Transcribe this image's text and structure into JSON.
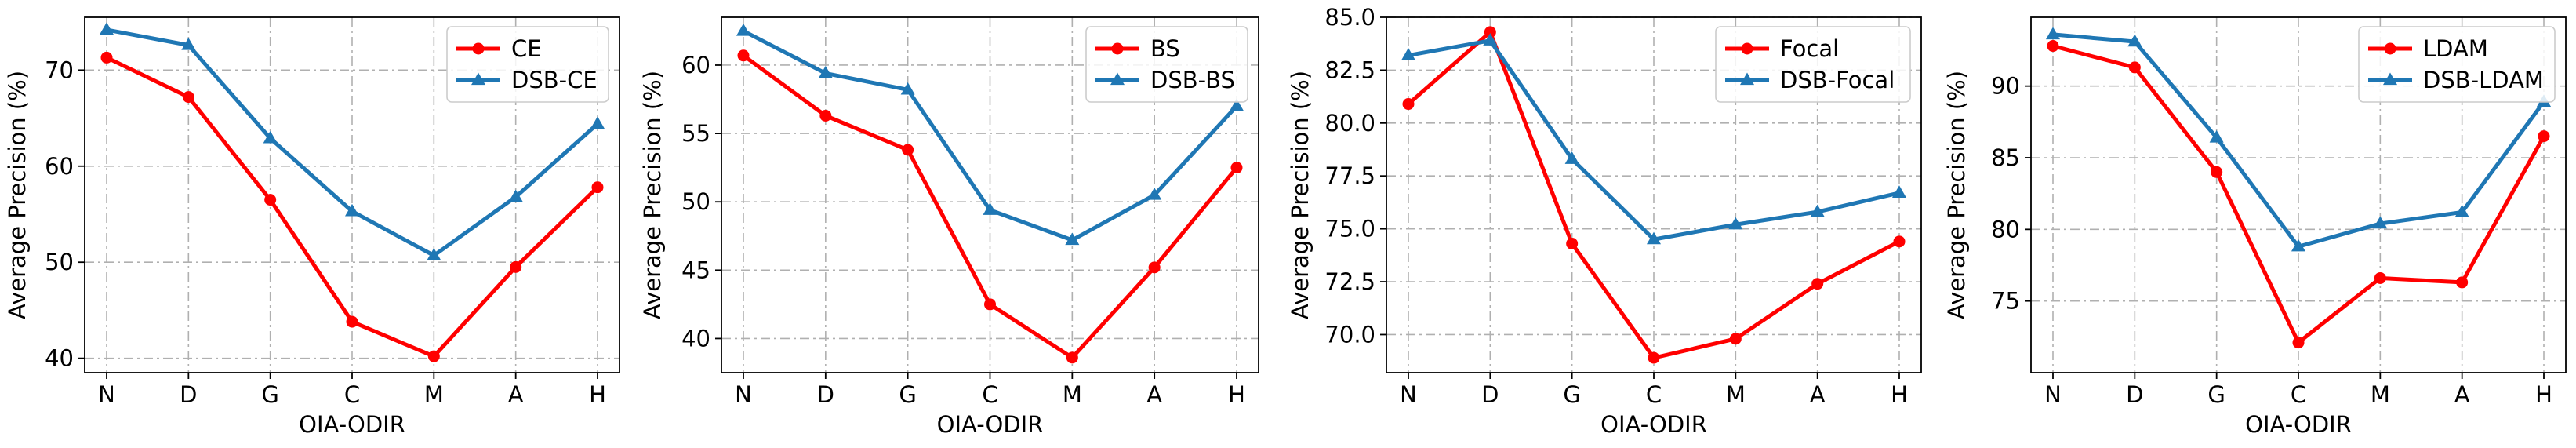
{
  "chart_data": [
    {
      "type": "line",
      "xlabel": "OIA-ODIR",
      "ylabel": "Average Precision (%)",
      "categories": [
        "N",
        "D",
        "G",
        "C",
        "M",
        "A",
        "H"
      ],
      "ylim": [
        38.5,
        75.5
      ],
      "yticks": [
        40,
        50,
        60,
        70
      ],
      "ytick_labels": [
        "40",
        "50",
        "60",
        "70"
      ],
      "grid": true,
      "legend_position": "top-right",
      "series": [
        {
          "name": "CE",
          "color": "#ff0000",
          "marker": "circle",
          "values": [
            71.3,
            67.2,
            56.5,
            43.8,
            40.2,
            49.5,
            57.8
          ]
        },
        {
          "name": "DSB-CE",
          "color": "#1f77b4",
          "marker": "triangle",
          "values": [
            74.2,
            72.6,
            62.9,
            55.3,
            50.7,
            56.8,
            64.4
          ]
        }
      ]
    },
    {
      "type": "line",
      "xlabel": "OIA-ODIR",
      "ylabel": "Average Precision (%)",
      "categories": [
        "N",
        "D",
        "G",
        "C",
        "M",
        "A",
        "H"
      ],
      "ylim": [
        37.5,
        63.5
      ],
      "yticks": [
        40,
        45,
        50,
        55,
        60
      ],
      "ytick_labels": [
        "40",
        "45",
        "50",
        "55",
        "60"
      ],
      "grid": true,
      "legend_position": "top-right",
      "series": [
        {
          "name": "BS",
          "color": "#ff0000",
          "marker": "circle",
          "values": [
            60.7,
            56.3,
            53.8,
            42.5,
            38.6,
            45.2,
            52.5
          ]
        },
        {
          "name": "DSB-BS",
          "color": "#1f77b4",
          "marker": "triangle",
          "values": [
            62.5,
            59.4,
            58.2,
            49.4,
            47.2,
            50.5,
            57.0
          ]
        }
      ]
    },
    {
      "type": "line",
      "xlabel": "OIA-ODIR",
      "ylabel": "Average Precision (%)",
      "categories": [
        "N",
        "D",
        "G",
        "C",
        "M",
        "A",
        "H"
      ],
      "ylim": [
        68.2,
        85.0
      ],
      "yticks": [
        70.0,
        72.5,
        75.0,
        77.5,
        80.0,
        82.5,
        85.0
      ],
      "ytick_labels": [
        "70.0",
        "72.5",
        "75.0",
        "77.5",
        "80.0",
        "82.5",
        "85.0"
      ],
      "grid": true,
      "legend_position": "top-right",
      "series": [
        {
          "name": "Focal",
          "color": "#ff0000",
          "marker": "circle",
          "values": [
            80.9,
            84.3,
            74.3,
            68.9,
            69.8,
            72.4,
            74.4
          ]
        },
        {
          "name": "DSB-Focal",
          "color": "#1f77b4",
          "marker": "triangle",
          "values": [
            83.2,
            83.9,
            78.3,
            74.5,
            75.2,
            75.8,
            76.7
          ]
        }
      ]
    },
    {
      "type": "line",
      "xlabel": "OIA-ODIR",
      "ylabel": "Average Precision (%)",
      "categories": [
        "N",
        "D",
        "G",
        "C",
        "M",
        "A",
        "H"
      ],
      "ylim": [
        70.0,
        94.8
      ],
      "yticks": [
        75,
        80,
        85,
        90
      ],
      "ytick_labels": [
        "75",
        "80",
        "85",
        "90"
      ],
      "grid": true,
      "legend_position": "top-right",
      "series": [
        {
          "name": "LDAM",
          "color": "#ff0000",
          "marker": "circle",
          "values": [
            92.8,
            91.3,
            84.0,
            72.1,
            76.6,
            76.3,
            86.5
          ]
        },
        {
          "name": "DSB-LDAM",
          "color": "#1f77b4",
          "marker": "triangle",
          "values": [
            93.6,
            93.1,
            86.4,
            78.8,
            80.4,
            81.2,
            88.9
          ]
        }
      ]
    }
  ]
}
